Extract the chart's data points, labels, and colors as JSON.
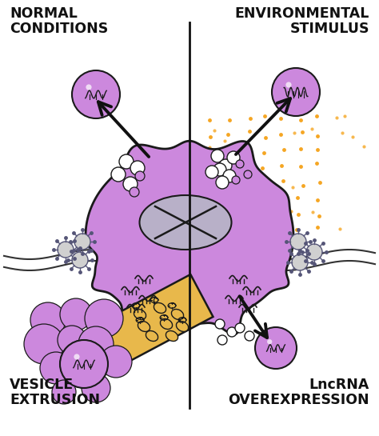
{
  "bg_color": "#ffffff",
  "cell_color": "#cc88dd",
  "cell_edge": "#1a1a1a",
  "nucleus_fill": "#b8b0c8",
  "vesicle_color": "#cc88dd",
  "vesicle_edge": "#1a1a1a",
  "er_color": "#e8b84b",
  "orange_dot_color": "#f5a623",
  "label_normal": "NORMAL\nCONDITIONS",
  "label_env": "ENVIRONMENTAL\nSTIMULUS",
  "label_vesicle": "VESICLE\nEXTRUSION",
  "label_lnc": "LncRNA\nOVEREXPRESSION",
  "divider_color": "#111111",
  "arrow_color": "#111111",
  "membrane_color": "#333333",
  "spiky_fill": "#d0d0d0",
  "spiky_edge": "#555577"
}
